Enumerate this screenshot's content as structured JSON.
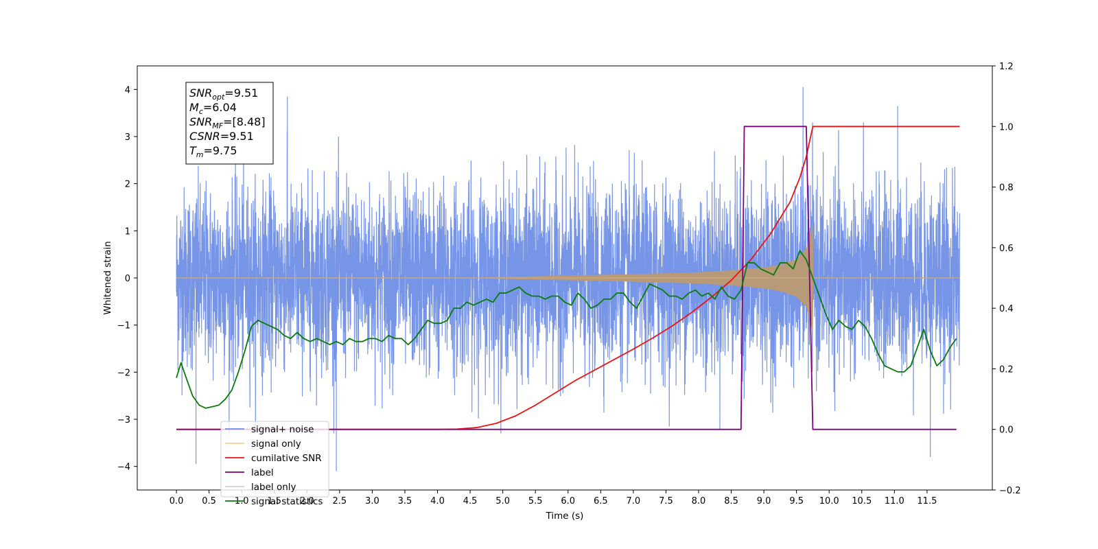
{
  "chart_data": {
    "type": "line",
    "xlabel": "Time (s)",
    "ylabel": "Whitened strain",
    "xlim": [
      -0.6,
      12.5
    ],
    "ylim": [
      -4.5,
      4.5
    ],
    "y2lim": [
      -0.2,
      1.2
    ],
    "x_ticks": [
      "0.0",
      "0.5",
      "1.0",
      "1.5",
      "2.0",
      "2.5",
      "3.0",
      "3.5",
      "4.0",
      "4.5",
      "5.0",
      "5.5",
      "6.0",
      "6.5",
      "7.0",
      "7.5",
      "8.0",
      "8.5",
      "9.0",
      "9.5",
      "10.0",
      "10.5",
      "11.0",
      "11.5"
    ],
    "x_tick_values": [
      0,
      0.5,
      1,
      1.5,
      2,
      2.5,
      3,
      3.5,
      4,
      4.5,
      5,
      5.5,
      6,
      6.5,
      7,
      7.5,
      8,
      8.5,
      9,
      9.5,
      10,
      10.5,
      11,
      11.5
    ],
    "y_ticks": [
      "4",
      "3",
      "2",
      "1",
      "0",
      "−1",
      "−2",
      "−3",
      "−4"
    ],
    "y_tick_values": [
      4,
      3,
      2,
      1,
      0,
      -1,
      -2,
      -3,
      -4
    ],
    "y2_ticks": [
      "1.2",
      "1.0",
      "0.8",
      "0.6",
      "0.4",
      "0.2",
      "0.0",
      "−0.2"
    ],
    "y2_tick_values": [
      1.2,
      1.0,
      0.8,
      0.6,
      0.4,
      0.2,
      0.0,
      -0.2
    ],
    "grid": false,
    "legend_position": "lower-left",
    "annotation": {
      "lines": [
        {
          "base": "SNR",
          "sub": "opt",
          "rest": "=9.51"
        },
        {
          "base": "M",
          "sub": "c",
          "rest": "=6.04"
        },
        {
          "base": "SNR",
          "sub": "MF",
          "rest": "=[8.48]"
        },
        {
          "base": "CSNR",
          "sub": "",
          "rest": "=9.51"
        },
        {
          "base": "T",
          "sub": "m",
          "rest": "=9.75"
        }
      ]
    },
    "series": [
      {
        "name": "signal+ noise",
        "axis": "left",
        "color": "#6f8fe6",
        "description_envelope": {
          "t_start": 0.0,
          "t_end": 12.0,
          "typical_upper": 2.6,
          "typical_lower": -2.6,
          "peaks": [
            [
              0.3,
              -3.95
            ],
            [
              1.7,
              3.85
            ],
            [
              2.45,
              -4.1
            ],
            [
              9.6,
              4.05
            ],
            [
              11.05,
              3.65
            ],
            [
              11.55,
              -3.8
            ]
          ]
        }
      },
      {
        "name": "signal only",
        "axis": "left",
        "color": "#f5b041",
        "envelope": {
          "t": [
            0.0,
            3.0,
            4.5,
            5.0,
            6.0,
            7.0,
            8.0,
            8.5,
            9.0,
            9.3,
            9.5,
            9.65,
            9.75,
            9.76,
            12.0
          ],
          "amp": [
            0.0,
            0.0,
            0.005,
            0.02,
            0.05,
            0.08,
            0.12,
            0.16,
            0.22,
            0.3,
            0.4,
            0.62,
            1.15,
            0.0,
            0.0
          ]
        }
      },
      {
        "name": "cumilative SNR",
        "axis": "right",
        "color": "#ee1111",
        "x": [
          0.0,
          4.0,
          4.3,
          4.6,
          4.9,
          5.2,
          5.5,
          5.8,
          6.1,
          6.4,
          6.7,
          7.0,
          7.3,
          7.6,
          7.9,
          8.2,
          8.5,
          8.8,
          9.1,
          9.4,
          9.55,
          9.65,
          9.7,
          9.75,
          12.0
        ],
        "y": [
          0.0,
          0.0,
          0.001,
          0.006,
          0.02,
          0.045,
          0.08,
          0.12,
          0.16,
          0.195,
          0.23,
          0.265,
          0.302,
          0.342,
          0.387,
          0.437,
          0.492,
          0.56,
          0.645,
          0.75,
          0.83,
          0.9,
          0.95,
          1.0,
          1.0
        ]
      },
      {
        "name": "label",
        "axis": "right",
        "color": "#800080",
        "x": [
          0.0,
          8.65,
          8.7,
          9.65,
          9.75,
          11.95
        ],
        "y": [
          0.0,
          0.0,
          1.0,
          1.0,
          0.0,
          0.0
        ]
      },
      {
        "name": "label only",
        "axis": "right",
        "color": "#d0d0d0",
        "x": [],
        "y": []
      },
      {
        "name": "signal statistics",
        "axis": "right",
        "color": "#0a7a0a",
        "x": [
          0.0,
          0.07,
          0.15,
          0.25,
          0.35,
          0.45,
          0.55,
          0.65,
          0.75,
          0.85,
          0.95,
          1.05,
          1.15,
          1.25,
          1.35,
          1.45,
          1.55,
          1.65,
          1.75,
          1.85,
          1.95,
          2.05,
          2.15,
          2.25,
          2.35,
          2.45,
          2.55,
          2.65,
          2.75,
          2.85,
          2.95,
          3.05,
          3.15,
          3.25,
          3.35,
          3.45,
          3.55,
          3.65,
          3.75,
          3.85,
          3.95,
          4.05,
          4.15,
          4.25,
          4.35,
          4.45,
          4.55,
          4.65,
          4.75,
          4.85,
          4.95,
          5.05,
          5.15,
          5.25,
          5.35,
          5.45,
          5.55,
          5.65,
          5.75,
          5.85,
          5.95,
          6.05,
          6.15,
          6.25,
          6.35,
          6.45,
          6.55,
          6.65,
          6.75,
          6.85,
          6.95,
          7.05,
          7.15,
          7.25,
          7.35,
          7.45,
          7.55,
          7.65,
          7.75,
          7.85,
          7.95,
          8.05,
          8.15,
          8.25,
          8.35,
          8.45,
          8.55,
          8.65,
          8.75,
          8.85,
          8.95,
          9.05,
          9.15,
          9.25,
          9.35,
          9.45,
          9.55,
          9.65,
          9.75,
          9.85,
          9.95,
          10.05,
          10.15,
          10.25,
          10.35,
          10.45,
          10.55,
          10.65,
          10.75,
          10.85,
          10.95,
          11.05,
          11.15,
          11.25,
          11.35,
          11.45,
          11.55,
          11.65,
          11.75,
          11.85,
          11.95
        ],
        "y": [
          0.17,
          0.22,
          0.17,
          0.11,
          0.08,
          0.07,
          0.075,
          0.08,
          0.1,
          0.13,
          0.19,
          0.26,
          0.34,
          0.36,
          0.35,
          0.34,
          0.33,
          0.31,
          0.3,
          0.32,
          0.3,
          0.29,
          0.3,
          0.29,
          0.28,
          0.29,
          0.28,
          0.3,
          0.29,
          0.29,
          0.3,
          0.3,
          0.29,
          0.31,
          0.3,
          0.3,
          0.28,
          0.3,
          0.33,
          0.36,
          0.35,
          0.35,
          0.36,
          0.4,
          0.4,
          0.42,
          0.41,
          0.42,
          0.43,
          0.42,
          0.45,
          0.45,
          0.46,
          0.47,
          0.45,
          0.44,
          0.44,
          0.43,
          0.44,
          0.44,
          0.42,
          0.41,
          0.45,
          0.43,
          0.4,
          0.41,
          0.43,
          0.43,
          0.45,
          0.45,
          0.42,
          0.4,
          0.44,
          0.48,
          0.47,
          0.46,
          0.44,
          0.44,
          0.43,
          0.45,
          0.46,
          0.44,
          0.45,
          0.43,
          0.47,
          0.44,
          0.43,
          0.46,
          0.55,
          0.55,
          0.53,
          0.52,
          0.51,
          0.55,
          0.55,
          0.53,
          0.59,
          0.56,
          0.5,
          0.44,
          0.38,
          0.33,
          0.36,
          0.34,
          0.33,
          0.36,
          0.34,
          0.3,
          0.25,
          0.21,
          0.2,
          0.19,
          0.19,
          0.21,
          0.27,
          0.33,
          0.26,
          0.21,
          0.23,
          0.27,
          0.3
        ]
      }
    ]
  }
}
